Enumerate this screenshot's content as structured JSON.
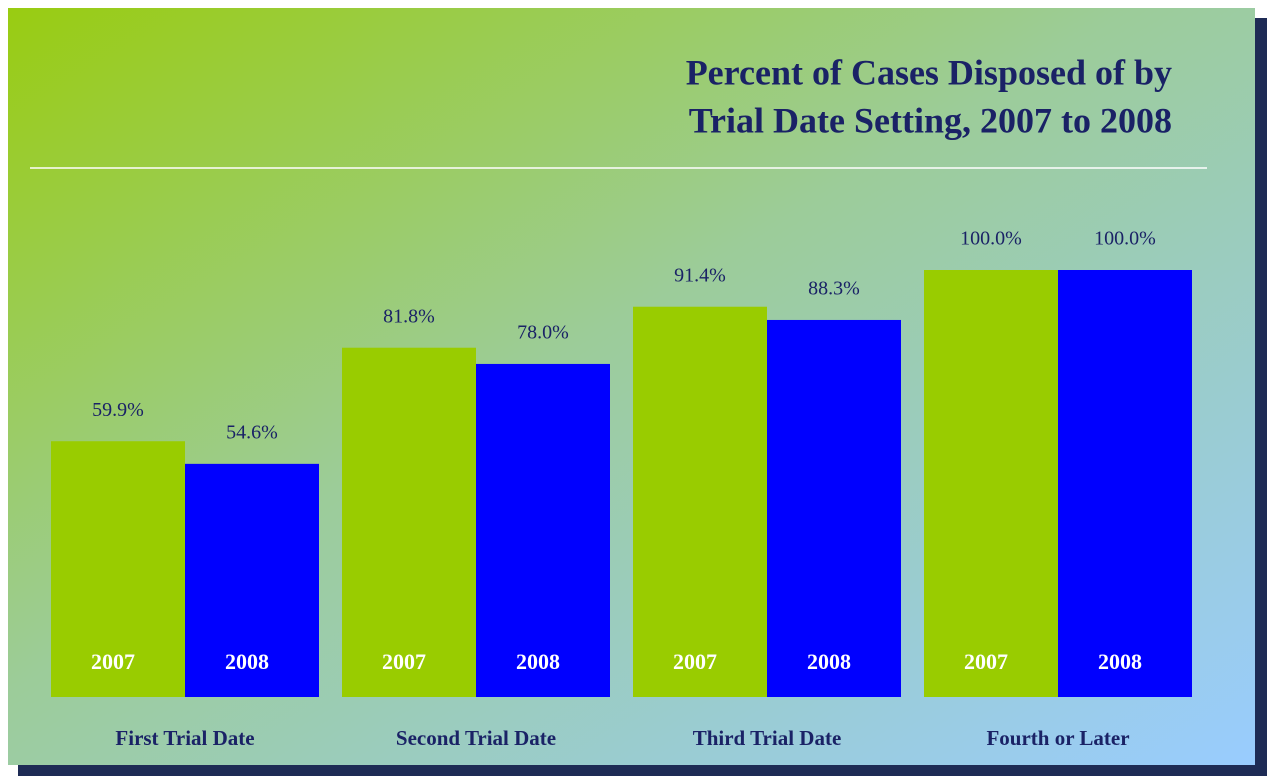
{
  "chart_data": {
    "type": "bar",
    "title": [
      "Percent of Cases Disposed of by",
      "Trial Date Setting, 2007 to 2008"
    ],
    "categories": [
      "First Trial Date",
      "Second Trial Date",
      "Third Trial Date",
      "Fourth or Later"
    ],
    "series": [
      {
        "name": "2007",
        "color": "#99cc00",
        "values": [
          59.9,
          81.8,
          91.4,
          100.0
        ],
        "value_labels": [
          "59.9%",
          "81.8%",
          "91.4%",
          "100.0%"
        ]
      },
      {
        "name": "2008",
        "color": "#0000ff",
        "values": [
          54.6,
          78.0,
          88.3,
          100.0
        ],
        "value_labels": [
          "54.6%",
          "78.0%",
          "88.3%",
          "100.0%"
        ]
      }
    ]
  }
}
